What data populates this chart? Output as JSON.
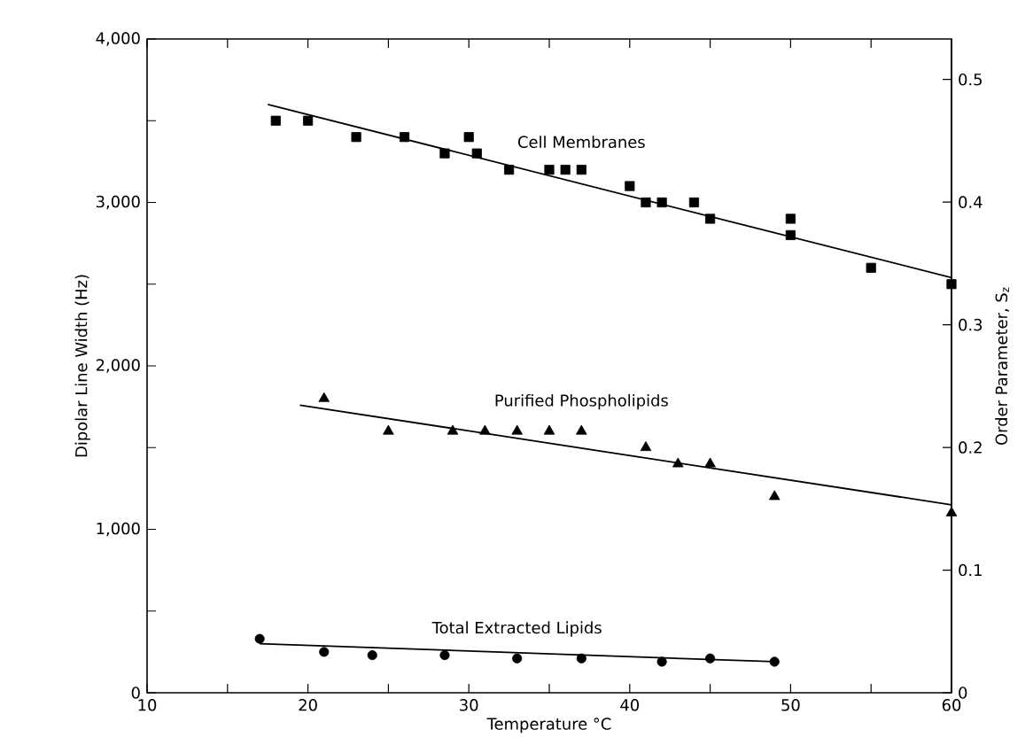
{
  "chart_data": {
    "type": "scatter",
    "xlabel": "Temperature °C",
    "ylabel": "Dipolar Line Width (Hz)",
    "y2label": "Order Parameter, S$_{z}$",
    "legend": false,
    "grid": false,
    "xlim": [
      10,
      60
    ],
    "ylim": [
      0,
      4000
    ],
    "y2lim": [
      0,
      0.533
    ],
    "xticks": [
      10,
      {
        "value": 15,
        "label": null
      },
      20,
      {
        "value": 25,
        "label": null
      },
      30,
      {
        "value": 35,
        "label": null
      },
      40,
      {
        "value": 45,
        "label": null
      },
      50,
      {
        "value": 55,
        "label": null
      },
      60
    ],
    "yticks": [
      0,
      {
        "value": 500,
        "label": null
      },
      {
        "value": 1000,
        "label": "1,000"
      },
      {
        "value": 1500,
        "label": null
      },
      {
        "value": 2000,
        "label": "2,000"
      },
      {
        "value": 2500,
        "label": null
      },
      {
        "value": 3000,
        "label": "3,000"
      },
      {
        "value": 3500,
        "label": null
      },
      {
        "value": 4000,
        "label": "4,000"
      }
    ],
    "y2ticks": [
      0,
      0.1,
      0.2,
      0.3,
      0.4,
      0.5
    ],
    "series": [
      {
        "name": "Cell Membranes",
        "color": "#000000",
        "marker": "square",
        "x": [
          18,
          20,
          23,
          26,
          28.5,
          30,
          30.5,
          32.5,
          35,
          36,
          37,
          40,
          41,
          42,
          44,
          45,
          50,
          50,
          55,
          60
        ],
        "values": [
          3500,
          3500,
          3400,
          3400,
          3300,
          3400,
          3300,
          3200,
          3200,
          3200,
          3200,
          3100,
          3000,
          3000,
          3000,
          2900,
          2900,
          2800,
          2600,
          2500
        ]
      },
      {
        "type": "line",
        "color": "#000000",
        "marker": "none",
        "x": [
          17.5,
          60
        ],
        "values": [
          3600,
          2540
        ]
      },
      {
        "name": "Purified Phospholipids",
        "color": "#000000",
        "marker": "triangle",
        "x": [
          21,
          25,
          29,
          31,
          33,
          35,
          37,
          41,
          43,
          45,
          49,
          60
        ],
        "values": [
          1800,
          1600,
          1600,
          1600,
          1600,
          1600,
          1600,
          1500,
          1400,
          1400,
          1200,
          1100
        ]
      },
      {
        "type": "line",
        "color": "#000000",
        "marker": "none",
        "x": [
          19.5,
          60
        ],
        "values": [
          1760,
          1150
        ]
      },
      {
        "name": "Total Extracted Lipids",
        "color": "#000000",
        "marker": "circle",
        "x": [
          17,
          21,
          24,
          28.5,
          33,
          37,
          42,
          45,
          49
        ],
        "values": [
          330,
          250,
          230,
          230,
          210,
          210,
          190,
          210,
          190
        ]
      },
      {
        "type": "line",
        "color": "#000000",
        "marker": "none",
        "x": [
          17,
          49
        ],
        "values": [
          300,
          190
        ]
      }
    ]
  }
}
